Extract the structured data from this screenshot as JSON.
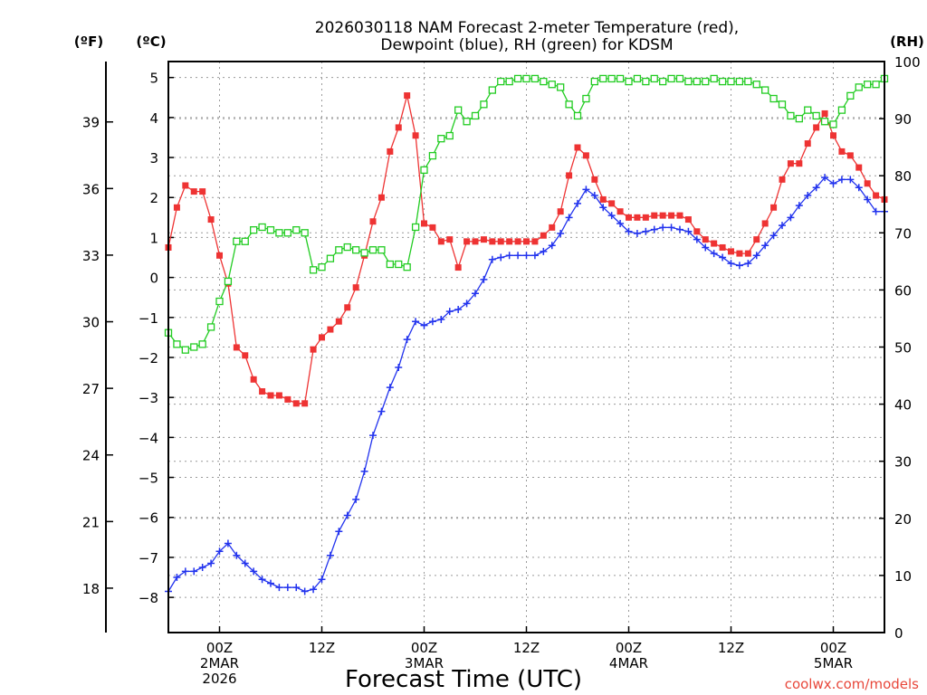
{
  "chart_data": {
    "type": "line",
    "title": "2026030118 NAM Forecast 2-meter Temperature (red),",
    "subtitle": "Dewpoint (blue), RH (green) for KDSM",
    "xlabel": "Forecast Time (UTC)",
    "credit": "coolwx.com/models",
    "units": {
      "fahrenheit": "(ºF)",
      "celsius": "(ºC)",
      "rh": "(RH)"
    },
    "x_unit": "forecast hour (UTC), 0 = 2026-03-01 18Z",
    "xlim": [
      0,
      84
    ],
    "x_ticks": [
      {
        "x": 6,
        "lines": [
          "00Z",
          "2MAR",
          "2026"
        ]
      },
      {
        "x": 18,
        "lines": [
          "12Z"
        ]
      },
      {
        "x": 30,
        "lines": [
          "00Z",
          "3MAR"
        ]
      },
      {
        "x": 42,
        "lines": [
          "12Z"
        ]
      },
      {
        "x": 54,
        "lines": [
          "00Z",
          "4MAR"
        ]
      },
      {
        "x": 66,
        "lines": [
          "12Z"
        ]
      },
      {
        "x": 78,
        "lines": [
          "00Z",
          "5MAR"
        ]
      }
    ],
    "axes": {
      "celsius": {
        "ylim": [
          -8.88,
          5.4
        ],
        "ticks": [
          "-8",
          "-7",
          "-6",
          "-5",
          "-4",
          "-3",
          "-2",
          "-1",
          "0",
          "1",
          "2",
          "3",
          "4",
          "5"
        ]
      },
      "fahrenheit": {
        "ylim": [
          16.0,
          41.72
        ],
        "ticks": [
          "18",
          "21",
          "24",
          "27",
          "30",
          "33",
          "36",
          "39"
        ]
      },
      "rh": {
        "ylim": [
          0,
          100
        ],
        "ticks": [
          "0",
          "10",
          "20",
          "30",
          "40",
          "50",
          "60",
          "70",
          "80",
          "90",
          "100"
        ]
      }
    },
    "series": [
      {
        "name": "2-meter Temperature",
        "unit": "°C",
        "color": "#ee3333",
        "marker": "filled-square",
        "x": [
          0,
          1,
          2,
          3,
          4,
          5,
          6,
          7,
          8,
          9,
          10,
          11,
          12,
          13,
          14,
          15,
          16,
          17,
          18,
          19,
          20,
          21,
          22,
          23,
          24,
          25,
          26,
          27,
          28,
          29,
          30,
          31,
          32,
          33,
          34,
          35,
          36,
          37,
          38,
          39,
          40,
          41,
          42,
          43,
          44,
          45,
          46,
          47,
          48,
          49,
          50,
          51,
          52,
          53,
          54,
          55,
          56,
          57,
          58,
          59,
          60,
          61,
          62,
          63,
          64,
          65,
          66,
          67,
          68,
          69,
          70,
          71,
          72,
          73,
          74,
          75,
          76,
          77,
          78,
          79,
          80,
          81,
          82,
          83,
          84
        ],
        "values": [
          0.75,
          1.75,
          2.3,
          2.15,
          2.15,
          1.45,
          0.55,
          -0.15,
          -1.75,
          -1.95,
          -2.55,
          -2.85,
          -2.95,
          -2.95,
          -3.05,
          -3.15,
          -3.15,
          -1.8,
          -1.5,
          -1.3,
          -1.1,
          -0.75,
          -0.25,
          0.55,
          1.4,
          2.0,
          3.15,
          3.75,
          4.55,
          3.55,
          1.35,
          1.25,
          0.9,
          0.95,
          0.25,
          0.9,
          0.9,
          0.95,
          0.9,
          0.9,
          0.9,
          0.9,
          0.9,
          0.9,
          1.05,
          1.25,
          1.65,
          2.55,
          3.25,
          3.05,
          2.45,
          1.95,
          1.85,
          1.65,
          1.5,
          1.5,
          1.5,
          1.55,
          1.55,
          1.55,
          1.55,
          1.45,
          1.15,
          0.95,
          0.85,
          0.75,
          0.65,
          0.6,
          0.6,
          0.95,
          1.35,
          1.75,
          2.45,
          2.85,
          2.85,
          3.35,
          3.75,
          4.1,
          3.55,
          3.15,
          3.05,
          2.75,
          2.35,
          2.05,
          1.95
        ]
      },
      {
        "name": "Dewpoint",
        "unit": "°C",
        "color": "#2233ee",
        "marker": "plus",
        "x": [
          0,
          1,
          2,
          3,
          4,
          5,
          6,
          7,
          8,
          9,
          10,
          11,
          12,
          13,
          14,
          15,
          16,
          17,
          18,
          19,
          20,
          21,
          22,
          23,
          24,
          25,
          26,
          27,
          28,
          29,
          30,
          31,
          32,
          33,
          34,
          35,
          36,
          37,
          38,
          39,
          40,
          41,
          42,
          43,
          44,
          45,
          46,
          47,
          48,
          49,
          50,
          51,
          52,
          53,
          54,
          55,
          56,
          57,
          58,
          59,
          60,
          61,
          62,
          63,
          64,
          65,
          66,
          67,
          68,
          69,
          70,
          71,
          72,
          73,
          74,
          75,
          76,
          77,
          78,
          79,
          80,
          81,
          82,
          83,
          84
        ],
        "values": [
          -7.85,
          -7.5,
          -7.35,
          -7.35,
          -7.25,
          -7.15,
          -6.85,
          -6.65,
          -6.95,
          -7.15,
          -7.35,
          -7.55,
          -7.65,
          -7.75,
          -7.75,
          -7.75,
          -7.85,
          -7.8,
          -7.55,
          -6.95,
          -6.35,
          -5.95,
          -5.55,
          -4.85,
          -3.95,
          -3.35,
          -2.75,
          -2.25,
          -1.55,
          -1.1,
          -1.2,
          -1.1,
          -1.05,
          -0.85,
          -0.8,
          -0.65,
          -0.4,
          -0.05,
          0.45,
          0.5,
          0.55,
          0.55,
          0.55,
          0.55,
          0.65,
          0.8,
          1.1,
          1.5,
          1.85,
          2.2,
          2.05,
          1.75,
          1.55,
          1.35,
          1.15,
          1.1,
          1.15,
          1.2,
          1.25,
          1.25,
          1.2,
          1.15,
          0.95,
          0.75,
          0.6,
          0.5,
          0.35,
          0.3,
          0.35,
          0.55,
          0.8,
          1.05,
          1.3,
          1.5,
          1.8,
          2.05,
          2.25,
          2.5,
          2.35,
          2.45,
          2.45,
          2.25,
          1.95,
          1.65,
          1.65
        ]
      },
      {
        "name": "RH",
        "unit": "%",
        "color": "#22cc22",
        "marker": "open-square",
        "x": [
          0,
          1,
          2,
          3,
          4,
          5,
          6,
          7,
          8,
          9,
          10,
          11,
          12,
          13,
          14,
          15,
          16,
          17,
          18,
          19,
          20,
          21,
          22,
          23,
          24,
          25,
          26,
          27,
          28,
          29,
          30,
          31,
          32,
          33,
          34,
          35,
          36,
          37,
          38,
          39,
          40,
          41,
          42,
          43,
          44,
          45,
          46,
          47,
          48,
          49,
          50,
          51,
          52,
          53,
          54,
          55,
          56,
          57,
          58,
          59,
          60,
          61,
          62,
          63,
          64,
          65,
          66,
          67,
          68,
          69,
          70,
          71,
          72,
          73,
          74,
          75,
          76,
          77,
          78,
          79,
          80,
          81,
          82,
          83,
          84
        ],
        "values": [
          52.5,
          50.5,
          49.5,
          50,
          50.5,
          53.5,
          58,
          61.5,
          68.5,
          68.5,
          70.5,
          71,
          70.5,
          70,
          70,
          70.5,
          70,
          63.5,
          64,
          65.5,
          67,
          67.5,
          67,
          66.5,
          67,
          67,
          64.5,
          64.5,
          64,
          71,
          81,
          83.5,
          86.5,
          87,
          91.5,
          89.5,
          90.5,
          92.5,
          95,
          96.5,
          96.5,
          97,
          97,
          97,
          96.5,
          96,
          95.5,
          92.5,
          90.5,
          93.5,
          96.5,
          97,
          97,
          97,
          96.5,
          97,
          96.5,
          97,
          96.5,
          97,
          97,
          96.5,
          96.5,
          96.5,
          97,
          96.5,
          96.5,
          96.5,
          96.5,
          96,
          95,
          93.5,
          92.5,
          90.5,
          90,
          91.5,
          90.5,
          89.5,
          89,
          91.5,
          94,
          95.5,
          96,
          96,
          97
        ]
      }
    ]
  }
}
